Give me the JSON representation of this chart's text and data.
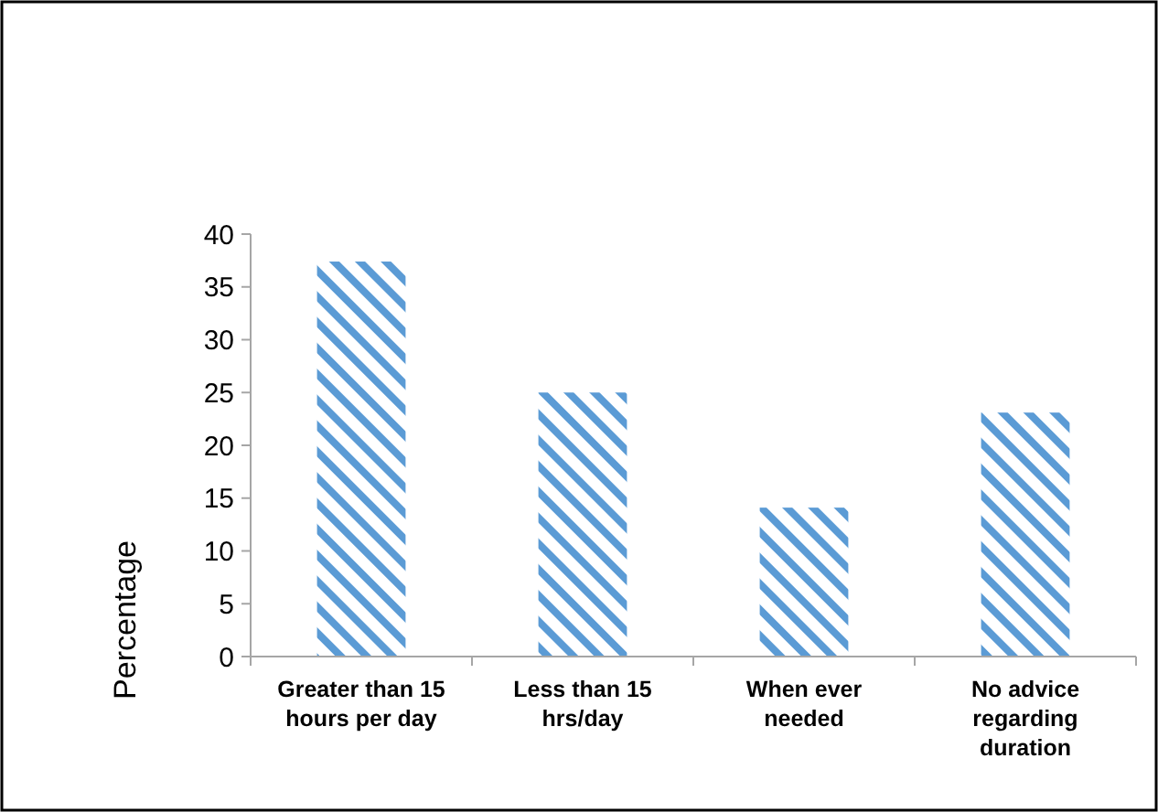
{
  "chart_data": {
    "type": "bar",
    "ylabel": "Percentage",
    "categories": [
      "Greater than 15 hours per day",
      "Less than 15 hrs/day",
      "When ever needed",
      "No advice regarding duration"
    ],
    "values": [
      37.4,
      25,
      14.1,
      23.1
    ],
    "color": "#5b9bd5",
    "ylim": [
      0,
      40
    ],
    "yticks": [
      0,
      5,
      10,
      15,
      20,
      25,
      30,
      35,
      40
    ],
    "grid": false
  }
}
